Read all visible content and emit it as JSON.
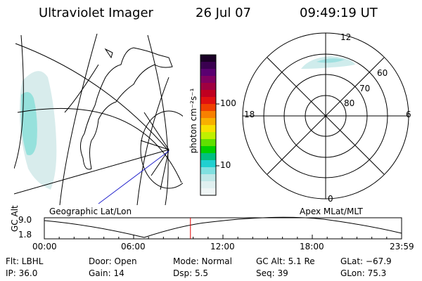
{
  "header": {
    "title": "Ultraviolet Imager",
    "date": "26 Jul 07",
    "time": "09:49:19 UT"
  },
  "colorbar": {
    "unit_label": "photon cm⁻²s⁻¹",
    "ticks": [
      "100",
      "10"
    ],
    "colors": [
      "#1a0026",
      "#3a0050",
      "#5a0070",
      "#800060",
      "#a00040",
      "#c00020",
      "#e01010",
      "#f04000",
      "#f88000",
      "#f8b000",
      "#f8e000",
      "#c0f000",
      "#60e000",
      "#00d000",
      "#00c080",
      "#20d0d0",
      "#80e0e0",
      "#c0e8e8",
      "#e0f0f0",
      "#f0f6f6"
    ]
  },
  "left_panel": {
    "label": "Geographic Lat/Lon"
  },
  "polar_panel": {
    "label": "Apex MLat/MLT",
    "mlt_labels": [
      "12",
      "18",
      "6",
      "0"
    ],
    "lat_labels": [
      "60",
      "70",
      "80"
    ]
  },
  "altitude_plot": {
    "y_label": "GC Alt",
    "y_ticks": [
      "9.0",
      "1.8"
    ],
    "x_ticks": [
      "00:00",
      "06:00",
      "12:00",
      "18:00",
      "23:59"
    ],
    "current_marker_color": "#e00000",
    "current_fraction_of_day": 0.409
  },
  "info": {
    "flt": "Flt: LBHL",
    "door": "Door: Open",
    "mode": "Mode: Normal",
    "gc_alt": "GC Alt: 5.1 Re",
    "glat": "GLat: −67.9",
    "ip": "IP: 36.0",
    "gain": "Gain: 14",
    "dsp": "Dsp:    5.5",
    "seq": "Seq: 39",
    "glon": "GLon:  75.3"
  }
}
